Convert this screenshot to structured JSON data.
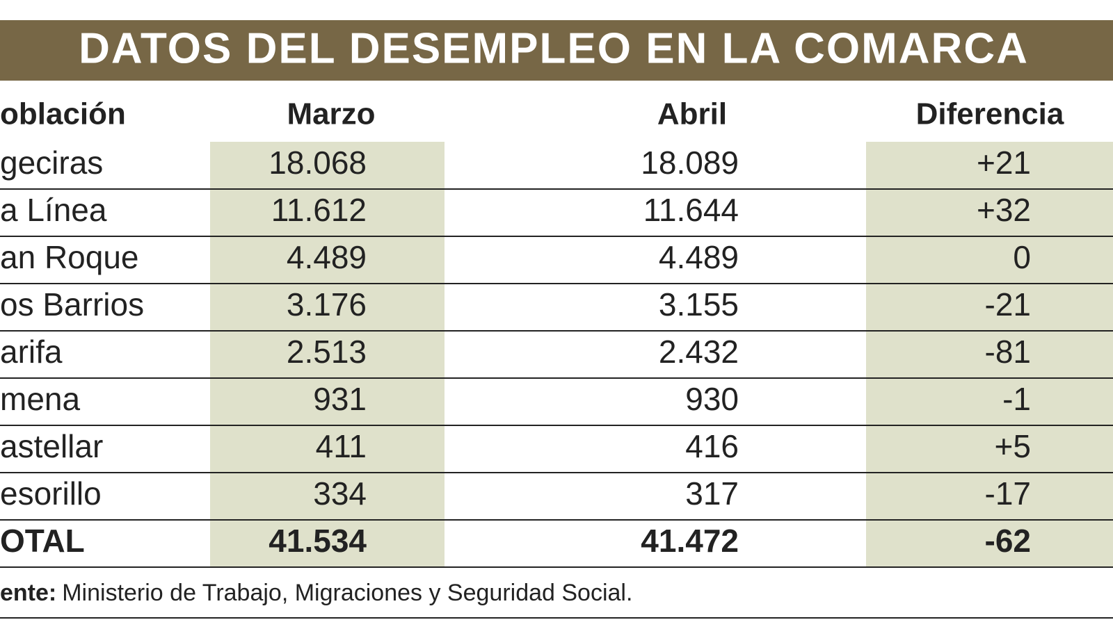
{
  "header": {
    "title": "DATOS DEL DESEMPLEO EN LA COMARCA"
  },
  "table": {
    "columns": [
      "oblación",
      "Marzo",
      "Abril",
      "Diferencia"
    ],
    "rows": [
      [
        "geciras",
        "18.068",
        "18.089",
        "+21"
      ],
      [
        "a Línea",
        "11.612",
        "11.644",
        "+32"
      ],
      [
        "an Roque",
        "4.489",
        "4.489",
        "0"
      ],
      [
        "os Barrios",
        "3.176",
        "3.155",
        "-21"
      ],
      [
        "arifa",
        "2.513",
        "2.432",
        "-81"
      ],
      [
        "mena",
        "931",
        "930",
        "-1"
      ],
      [
        "astellar",
        "411",
        "416",
        "+5"
      ],
      [
        "esorillo",
        "334",
        "317",
        "-17"
      ]
    ],
    "total": [
      "OTAL",
      "41.534",
      "41.472",
      "-62"
    ]
  },
  "footnote": {
    "label": "ente:",
    "text": "Ministerio de Trabajo, Migraciones y Seguridad Social."
  }
}
